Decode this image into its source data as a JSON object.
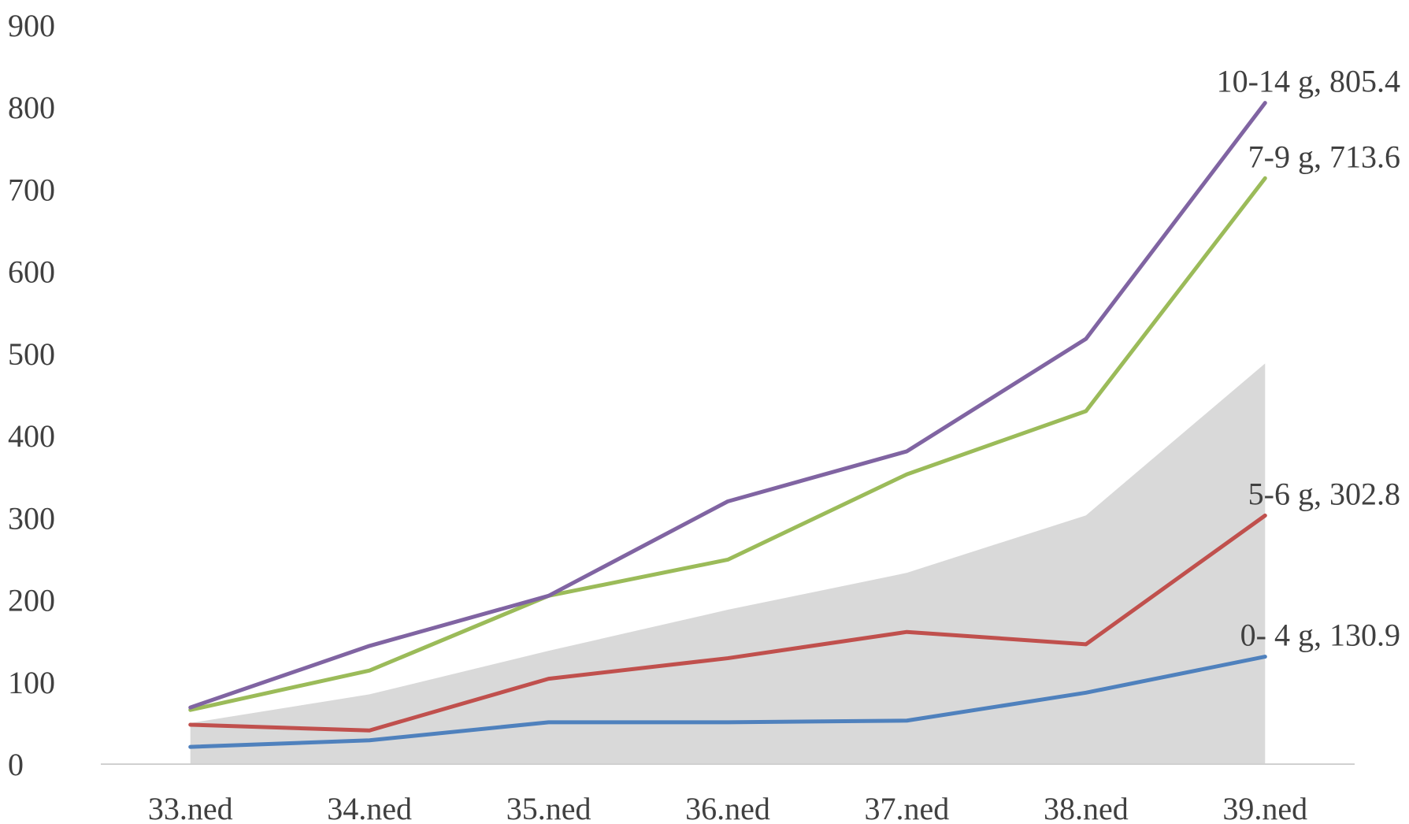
{
  "chart_data": {
    "type": "line",
    "title": "",
    "xlabel": "",
    "ylabel": "",
    "ylim": [
      0,
      900
    ],
    "yticks": [
      0,
      100,
      200,
      300,
      400,
      500,
      600,
      700,
      800,
      900
    ],
    "grid": false,
    "legend": "none",
    "categories": [
      "33.ned",
      "34.ned",
      "35.ned",
      "36.ned",
      "37.ned",
      "38.ned",
      "39.ned"
    ],
    "area": {
      "color": "#d9d9d9",
      "values": [
        50,
        85,
        138,
        188,
        233,
        303,
        488
      ]
    },
    "series": [
      {
        "label": "0- 4 g, 130.9",
        "color": "#4f81bd",
        "values": [
          21,
          29,
          51,
          51,
          53,
          87,
          130.9
        ]
      },
      {
        "label": "5-6 g, 302.8",
        "color": "#c0504d",
        "values": [
          48,
          41,
          104,
          129,
          161,
          146,
          302.8
        ]
      },
      {
        "label": "7-9 g, 713.6",
        "color": "#9bbb59",
        "values": [
          66,
          114,
          205,
          249,
          353,
          430,
          713.6
        ]
      },
      {
        "label": "10-14 g, 805.4",
        "color": "#8064a2",
        "values": [
          69,
          144,
          205,
          320,
          381,
          518,
          805.4
        ]
      }
    ]
  }
}
